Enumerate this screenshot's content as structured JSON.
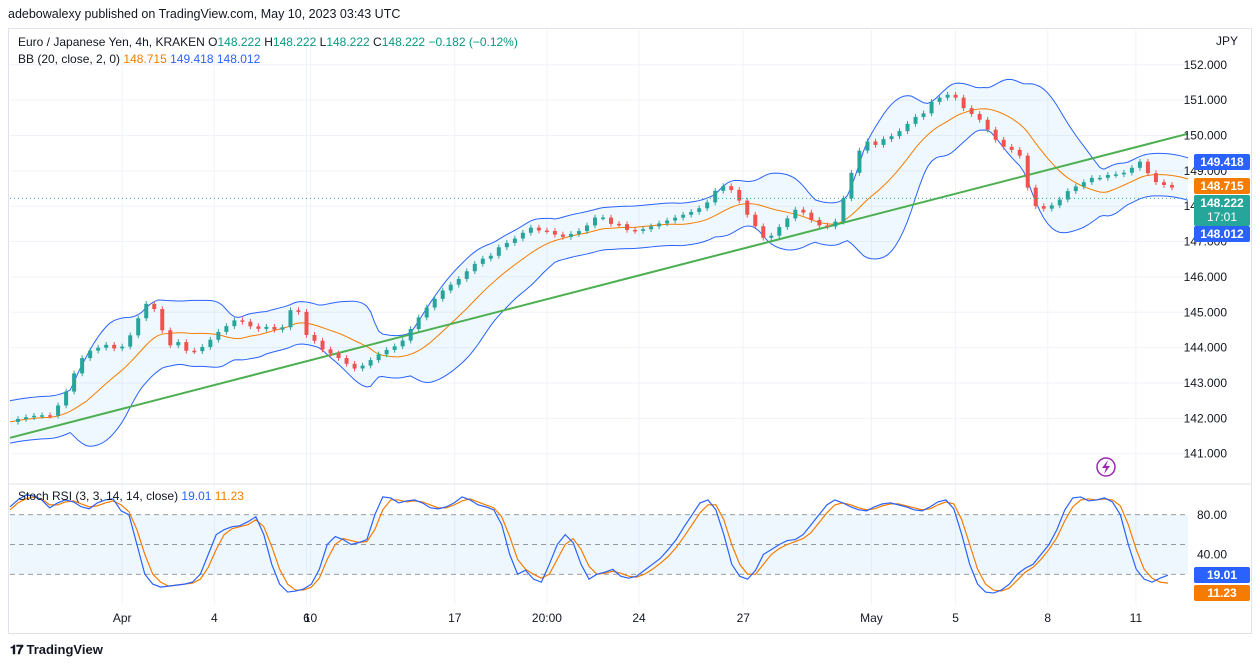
{
  "publisher": "adebowalexy published on TradingView.com, May 10, 2023 03:43 UTC",
  "currency": "JPY",
  "legend": {
    "symbol": "Euro / Japanese Yen, 4h, KRAKEN",
    "o_label": "O",
    "o": "148.222",
    "h_label": "H",
    "h": "148.222",
    "l_label": "L",
    "l": "148.222",
    "c_label": "C",
    "c": "148.222",
    "change": "−0.182 (−0.12%)",
    "bb_label": "BB (20, close, 2, 0)",
    "bb_mid": "148.715",
    "bb_up": "149.418",
    "bb_low": "148.012",
    "rsi_label": "Stoch RSI (3, 3, 14, 14, close)",
    "rsi_k": "19.01",
    "rsi_d": "11.23"
  },
  "price_tags": {
    "upper": "149.418",
    "mid": "148.715",
    "last": "148.222",
    "countdown": "17:01",
    "lower": "148.012",
    "rsi_k": "19.01",
    "rsi_d": "11.23"
  },
  "footer": "TradingView",
  "chart_data": [
    {
      "type": "candlestick",
      "title": "Euro / Japanese Yen, 4h, KRAKEN",
      "y_ticks": [
        "152.000",
        "151.000",
        "150.000",
        "149.000",
        "148.000",
        "147.000",
        "146.000",
        "145.000",
        "144.000",
        "143.000",
        "142.000",
        "141.000"
      ],
      "ylim": [
        140.2,
        152.7
      ],
      "x_ticks": [
        {
          "label": "Apr",
          "i": 28
        },
        {
          "label": "4",
          "i": 51
        },
        {
          "label": "6",
          "i": 74
        },
        {
          "label": "10",
          "i": 75
        },
        {
          "label": "17",
          "i": 111
        },
        {
          "label": "20:00",
          "i": 134
        },
        {
          "label": "24",
          "i": 157
        },
        {
          "label": "27",
          "i": 183
        },
        {
          "label": "May",
          "i": 215
        },
        {
          "label": "5",
          "i": 236
        },
        {
          "label": "8",
          "i": 259
        },
        {
          "label": "11",
          "i": 281
        }
      ],
      "x_count": 295,
      "closes": [
        141.9,
        142.0,
        142.05,
        142.1,
        142.05,
        142.4,
        142.9,
        143.6,
        143.9,
        144.0,
        144.1,
        143.9,
        144.2,
        144.8,
        145.3,
        145.0,
        144.0,
        144.2,
        143.9,
        143.9,
        144.1,
        144.4,
        144.6,
        144.8,
        144.7,
        144.5,
        144.6,
        144.5,
        144.6,
        145.4,
        144.4,
        144.2,
        143.9,
        143.8,
        143.6,
        143.4,
        143.5,
        143.7,
        143.9,
        144.0,
        144.2,
        144.6,
        145.0,
        145.3,
        145.6,
        145.8,
        146.0,
        146.3,
        146.5,
        146.6,
        146.9,
        147.0,
        147.2,
        147.4,
        147.3,
        147.3,
        147.1,
        147.2,
        147.3,
        147.5,
        147.8,
        147.5,
        147.5,
        147.3,
        147.3,
        147.4,
        147.5,
        147.6,
        147.7,
        147.8,
        147.9,
        148.1,
        148.5,
        148.6,
        148.3,
        147.8,
        147.4,
        147.0,
        147.3,
        147.6,
        147.9,
        147.8,
        147.5,
        147.4,
        147.5,
        148.3,
        149.2,
        149.9,
        149.7,
        149.9,
        150.0,
        150.2,
        150.5,
        150.6,
        151.0,
        151.1,
        151.2,
        150.8,
        150.6,
        150.4,
        150.0,
        149.7,
        149.6,
        149.4,
        148.1,
        147.9,
        148.0,
        148.2,
        148.5,
        148.6,
        148.8,
        148.8,
        148.9,
        148.9,
        149.0,
        149.3,
        148.9,
        148.6,
        148.6,
        148.4,
        148.2
      ],
      "bollinger": {
        "upper": "series",
        "mid": "series",
        "lower": "series"
      },
      "trendline": {
        "from": [
          0,
          141.45
        ],
        "to": [
          294,
          150.05
        ],
        "color": "#4caf50"
      },
      "last_price": 148.222
    },
    {
      "type": "line",
      "title": "Stoch RSI (3, 3, 14, 14, close)",
      "y_ticks": [
        "80.00",
        "40.00"
      ],
      "bands": [
        80,
        50,
        20
      ],
      "ylim": [
        -3,
        103
      ],
      "series": [
        {
          "name": "K",
          "color": "#2962ff",
          "values": [
            88,
            95,
            100,
            99,
            95,
            87,
            92,
            95,
            93,
            88,
            86,
            92,
            95,
            96,
            84,
            80,
            50,
            20,
            10,
            7,
            8,
            9,
            10,
            12,
            20,
            40,
            60,
            65,
            68,
            69,
            73,
            78,
            60,
            30,
            10,
            2,
            3,
            5,
            10,
            25,
            50,
            58,
            55,
            50,
            52,
            55,
            80,
            98,
            97,
            92,
            94,
            95,
            92,
            87,
            86,
            88,
            92,
            98,
            95,
            90,
            88,
            85,
            70,
            40,
            20,
            24,
            15,
            12,
            30,
            50,
            60,
            52,
            30,
            15,
            20,
            22,
            25,
            18,
            16,
            18,
            24,
            30,
            36,
            45,
            55,
            68,
            80,
            92,
            95,
            85,
            60,
            30,
            18,
            15,
            24,
            40,
            45,
            50,
            54,
            55,
            60,
            70,
            80,
            90,
            95,
            92,
            88,
            85,
            84,
            88,
            91,
            92,
            90,
            88,
            85,
            84,
            88,
            93,
            95,
            86,
            60,
            30,
            10,
            2,
            1,
            4,
            10,
            20,
            26,
            30,
            40,
            50,
            65,
            85,
            97,
            98,
            94,
            95,
            97,
            93,
            80,
            50,
            25,
            15,
            12,
            16,
            19
          ]
        },
        {
          "name": "D",
          "color": "#f57c00",
          "values": [
            85,
            92,
            96,
            98,
            96,
            90,
            90,
            93,
            94,
            91,
            88,
            89,
            92,
            94,
            90,
            83,
            65,
            40,
            20,
            12,
            8,
            9,
            10,
            11,
            15,
            27,
            45,
            60,
            66,
            68,
            70,
            75,
            68,
            48,
            25,
            10,
            4,
            4,
            7,
            16,
            35,
            50,
            56,
            54,
            52,
            53,
            65,
            85,
            95,
            95,
            93,
            94,
            93,
            90,
            87,
            87,
            90,
            94,
            96,
            93,
            90,
            87,
            78,
            58,
            35,
            25,
            20,
            16,
            20,
            35,
            50,
            56,
            45,
            28,
            20,
            21,
            23,
            21,
            18,
            17,
            20,
            25,
            31,
            38,
            47,
            58,
            70,
            82,
            90,
            90,
            75,
            50,
            30,
            20,
            20,
            30,
            40,
            46,
            50,
            53,
            56,
            62,
            72,
            82,
            90,
            92,
            90,
            87,
            85,
            86,
            89,
            91,
            91,
            89,
            87,
            85,
            86,
            90,
            93,
            91,
            75,
            50,
            25,
            10,
            4,
            3,
            6,
            14,
            22,
            27,
            35,
            45,
            57,
            74,
            88,
            95,
            96,
            95,
            96,
            95,
            89,
            70,
            45,
            25,
            16,
            12,
            11
          ]
        }
      ]
    }
  ]
}
